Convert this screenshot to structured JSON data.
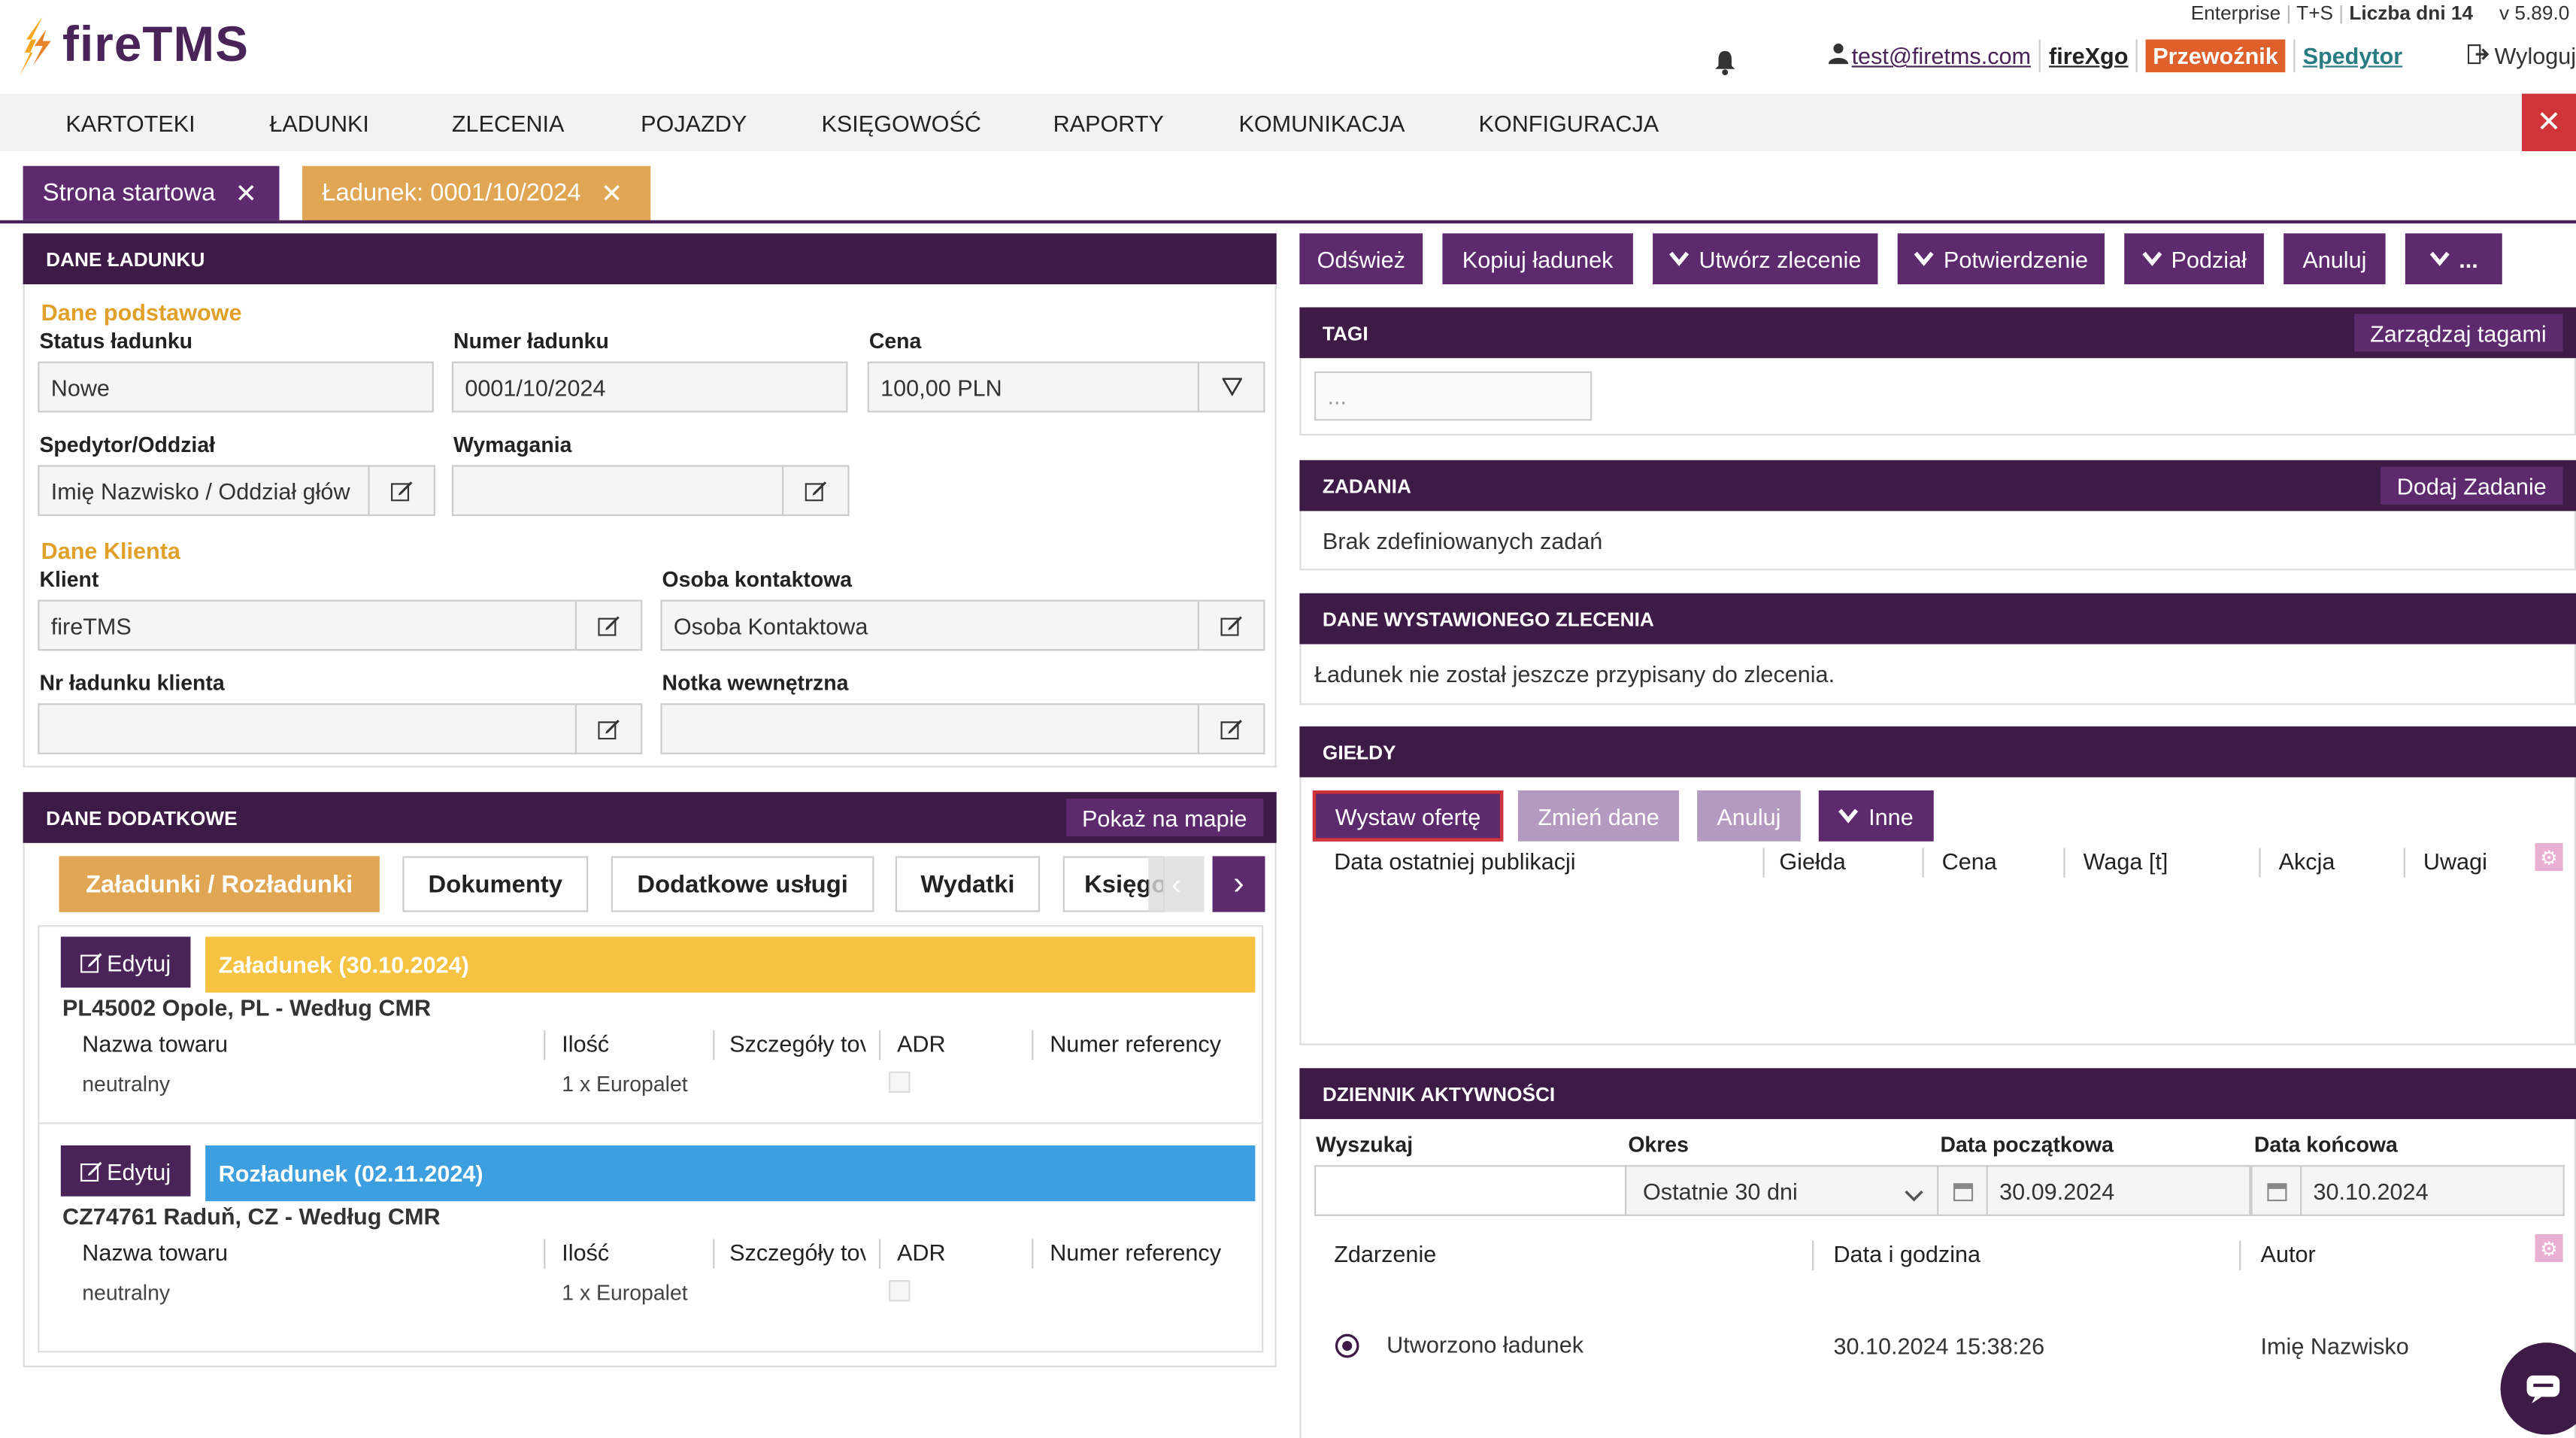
{
  "app": {
    "brand": "fireTMS",
    "edition": "Enterprise",
    "plan": "T+S",
    "days_label": "Liczba dni 14",
    "version": "v 5.89.0"
  },
  "user": {
    "email": "test@firetms.com",
    "firexgo": "fireXgo",
    "role_active": "Przewoźnik",
    "role_other": "Spedytor",
    "logout": "Wyloguj"
  },
  "nav": [
    "KARTOTEKI",
    "ŁADUNKI",
    "ZLECENIA",
    "POJAZDY",
    "KSIĘGOWOŚĆ",
    "RAPORTY",
    "KOMUNIKACJA",
    "KONFIGURACJA"
  ],
  "tabs": [
    {
      "label": "Strona startowa"
    },
    {
      "label": "Ładunek: 0001/10/2024"
    }
  ],
  "load": {
    "panel_title": "DANE ŁADUNKU",
    "basic_title": "Dane podstawowe",
    "status_label": "Status ładunku",
    "status_value": "Nowe",
    "number_label": "Numer ładunku",
    "number_value": "0001/10/2024",
    "price_label": "Cena",
    "price_value": "100,00 PLN",
    "forwarder_label": "Spedytor/Oddział",
    "forwarder_value": "Imię Nazwisko / Oddział głów",
    "requirements_label": "Wymagania",
    "requirements_value": "",
    "client_section": "Dane Klienta",
    "client_label": "Klient",
    "client_value": "fireTMS",
    "contact_label": "Osoba kontaktowa",
    "contact_value": "Osoba Kontaktowa",
    "client_load_no_label": "Nr ładunku klienta",
    "client_load_no_value": "",
    "note_label": "Notka wewnętrzna",
    "note_value": ""
  },
  "extra": {
    "panel_title": "DANE DODATKOWE",
    "map_button": "Pokaż na mapie",
    "subtabs": [
      "Załadunki / Rozładunki",
      "Dokumenty",
      "Dodatkowe usługi",
      "Wydatki",
      "Księgo"
    ],
    "events": [
      {
        "edit": "Edytuj",
        "title": "Załadunek (30.10.2024)",
        "color": "#f5c242",
        "location": "PL45002 Opole, PL - Według CMR",
        "cols": [
          "Nazwa towaru",
          "Ilość",
          "Szczegóły tov",
          "ADR",
          "Numer referency"
        ],
        "goods": "neutralny",
        "qty": "1 x Europalet"
      },
      {
        "edit": "Edytuj",
        "title": "Rozładunek (02.11.2024)",
        "color": "#3d9ee0",
        "location": "CZ74761 Raduň, CZ - Według CMR",
        "cols": [
          "Nazwa towaru",
          "Ilość",
          "Szczegóły tov",
          "ADR",
          "Numer referency"
        ],
        "goods": "neutralny",
        "qty": "1 x Europalet"
      }
    ]
  },
  "actions": {
    "refresh": "Odśwież",
    "copy": "Kopiuj ładunek",
    "create_order": "Utwórz zlecenie",
    "confirm": "Potwierdzenie",
    "split": "Podział",
    "cancel": "Anuluj",
    "more": "..."
  },
  "tags": {
    "title": "TAGI",
    "manage": "Zarządzaj tagami",
    "placeholder": "..."
  },
  "tasks": {
    "title": "ZADANIA",
    "add": "Dodaj Zadanie",
    "empty": "Brak zdefiniowanych zadań"
  },
  "order": {
    "title": "DANE WYSTAWIONEGO ZLECENIA",
    "text": "Ładunek nie został jeszcze przypisany do zlecenia."
  },
  "exchanges": {
    "title": "GIEŁDY",
    "offer": "Wystaw ofertę",
    "change": "Zmień dane",
    "cancel": "Anuluj",
    "other": "Inne",
    "cols": [
      "Data ostatniej publikacji",
      "Giełda",
      "Cena",
      "Waga [t]",
      "Akcja",
      "Uwagi"
    ]
  },
  "log": {
    "title": "DZIENNIK AKTYWNOŚCI",
    "search_label": "Wyszukaj",
    "period_label": "Okres",
    "period_value": "Ostatnie 30 dni",
    "start_label": "Data początkowa",
    "start_value": "30.09.2024",
    "end_label": "Data końcowa",
    "end_value": "30.10.2024",
    "cols": [
      "Zdarzenie",
      "Data i godzina",
      "Autor"
    ],
    "rows": [
      {
        "event": "Utworzono ładunek",
        "datetime": "30.10.2024 15:38:26",
        "author": "Imię Nazwisko"
      }
    ]
  },
  "colors": {
    "primary": "#3e1a47",
    "button": "#5d2a6e",
    "accent_orange": "#e0a02a",
    "tab_active": "#e0a654",
    "danger": "#d13438"
  }
}
